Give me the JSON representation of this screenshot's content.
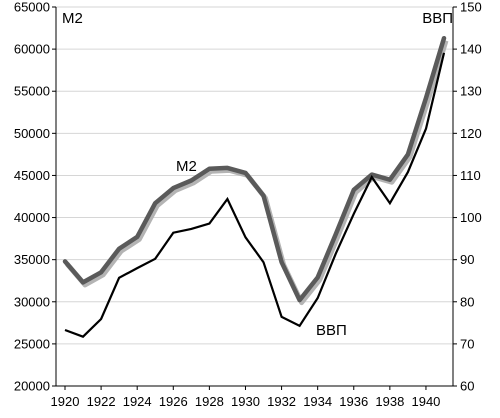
{
  "chart_data": {
    "type": "line",
    "title": "",
    "x": [
      1920,
      1921,
      1922,
      1923,
      1924,
      1925,
      1926,
      1927,
      1928,
      1929,
      1930,
      1931,
      1932,
      1933,
      1934,
      1935,
      1936,
      1937,
      1938,
      1939,
      1940,
      1941
    ],
    "x_tick_labels": [
      "1920",
      "1922",
      "1924",
      "1926",
      "1928",
      "1930",
      "1932",
      "1934",
      "1936",
      "1938",
      "1940"
    ],
    "x_tick_values": [
      1920,
      1922,
      1924,
      1926,
      1928,
      1930,
      1932,
      1934,
      1936,
      1938,
      1940
    ],
    "y_left": {
      "label": "М2",
      "range": [
        20000,
        65000
      ],
      "ticks": [
        "20000",
        "25000",
        "30000",
        "35000",
        "40000",
        "45000",
        "50000",
        "55000",
        "60000",
        "65000"
      ]
    },
    "y_right": {
      "label": "ВВП",
      "range": [
        60,
        150
      ],
      "ticks": [
        "60",
        "70",
        "80",
        "90",
        "100",
        "110",
        "120",
        "130",
        "140",
        "150"
      ]
    },
    "grid": "horizontal",
    "series": [
      {
        "name": "М2",
        "axis": "left",
        "color": "#5a5a5a",
        "shadow_color": "#b4b4b4",
        "values": [
          34800,
          32300,
          33500,
          36300,
          37700,
          41700,
          43500,
          44400,
          45800,
          45900,
          45300,
          42600,
          34700,
          30200,
          32900,
          38000,
          43300,
          45100,
          44500,
          47500,
          54200,
          61300
        ]
      },
      {
        "name": "ВВП",
        "axis": "right",
        "color": "#000000",
        "values": [
          73.3,
          71.7,
          75.9,
          85.7,
          88.0,
          90.2,
          96.4,
          97.3,
          98.6,
          104.4,
          95.3,
          89.4,
          76.4,
          74.3,
          80.9,
          91.4,
          100.9,
          109.6,
          103.4,
          110.8,
          121.1,
          139.1
        ]
      }
    ],
    "annotations": [
      {
        "text": "М2",
        "position": "top-left"
      },
      {
        "text": "ВВП",
        "position": "top-right"
      },
      {
        "text": "М2",
        "position": "near-m2-line-1927"
      },
      {
        "text": "ВВП",
        "position": "near-gdp-line-1934"
      }
    ]
  }
}
